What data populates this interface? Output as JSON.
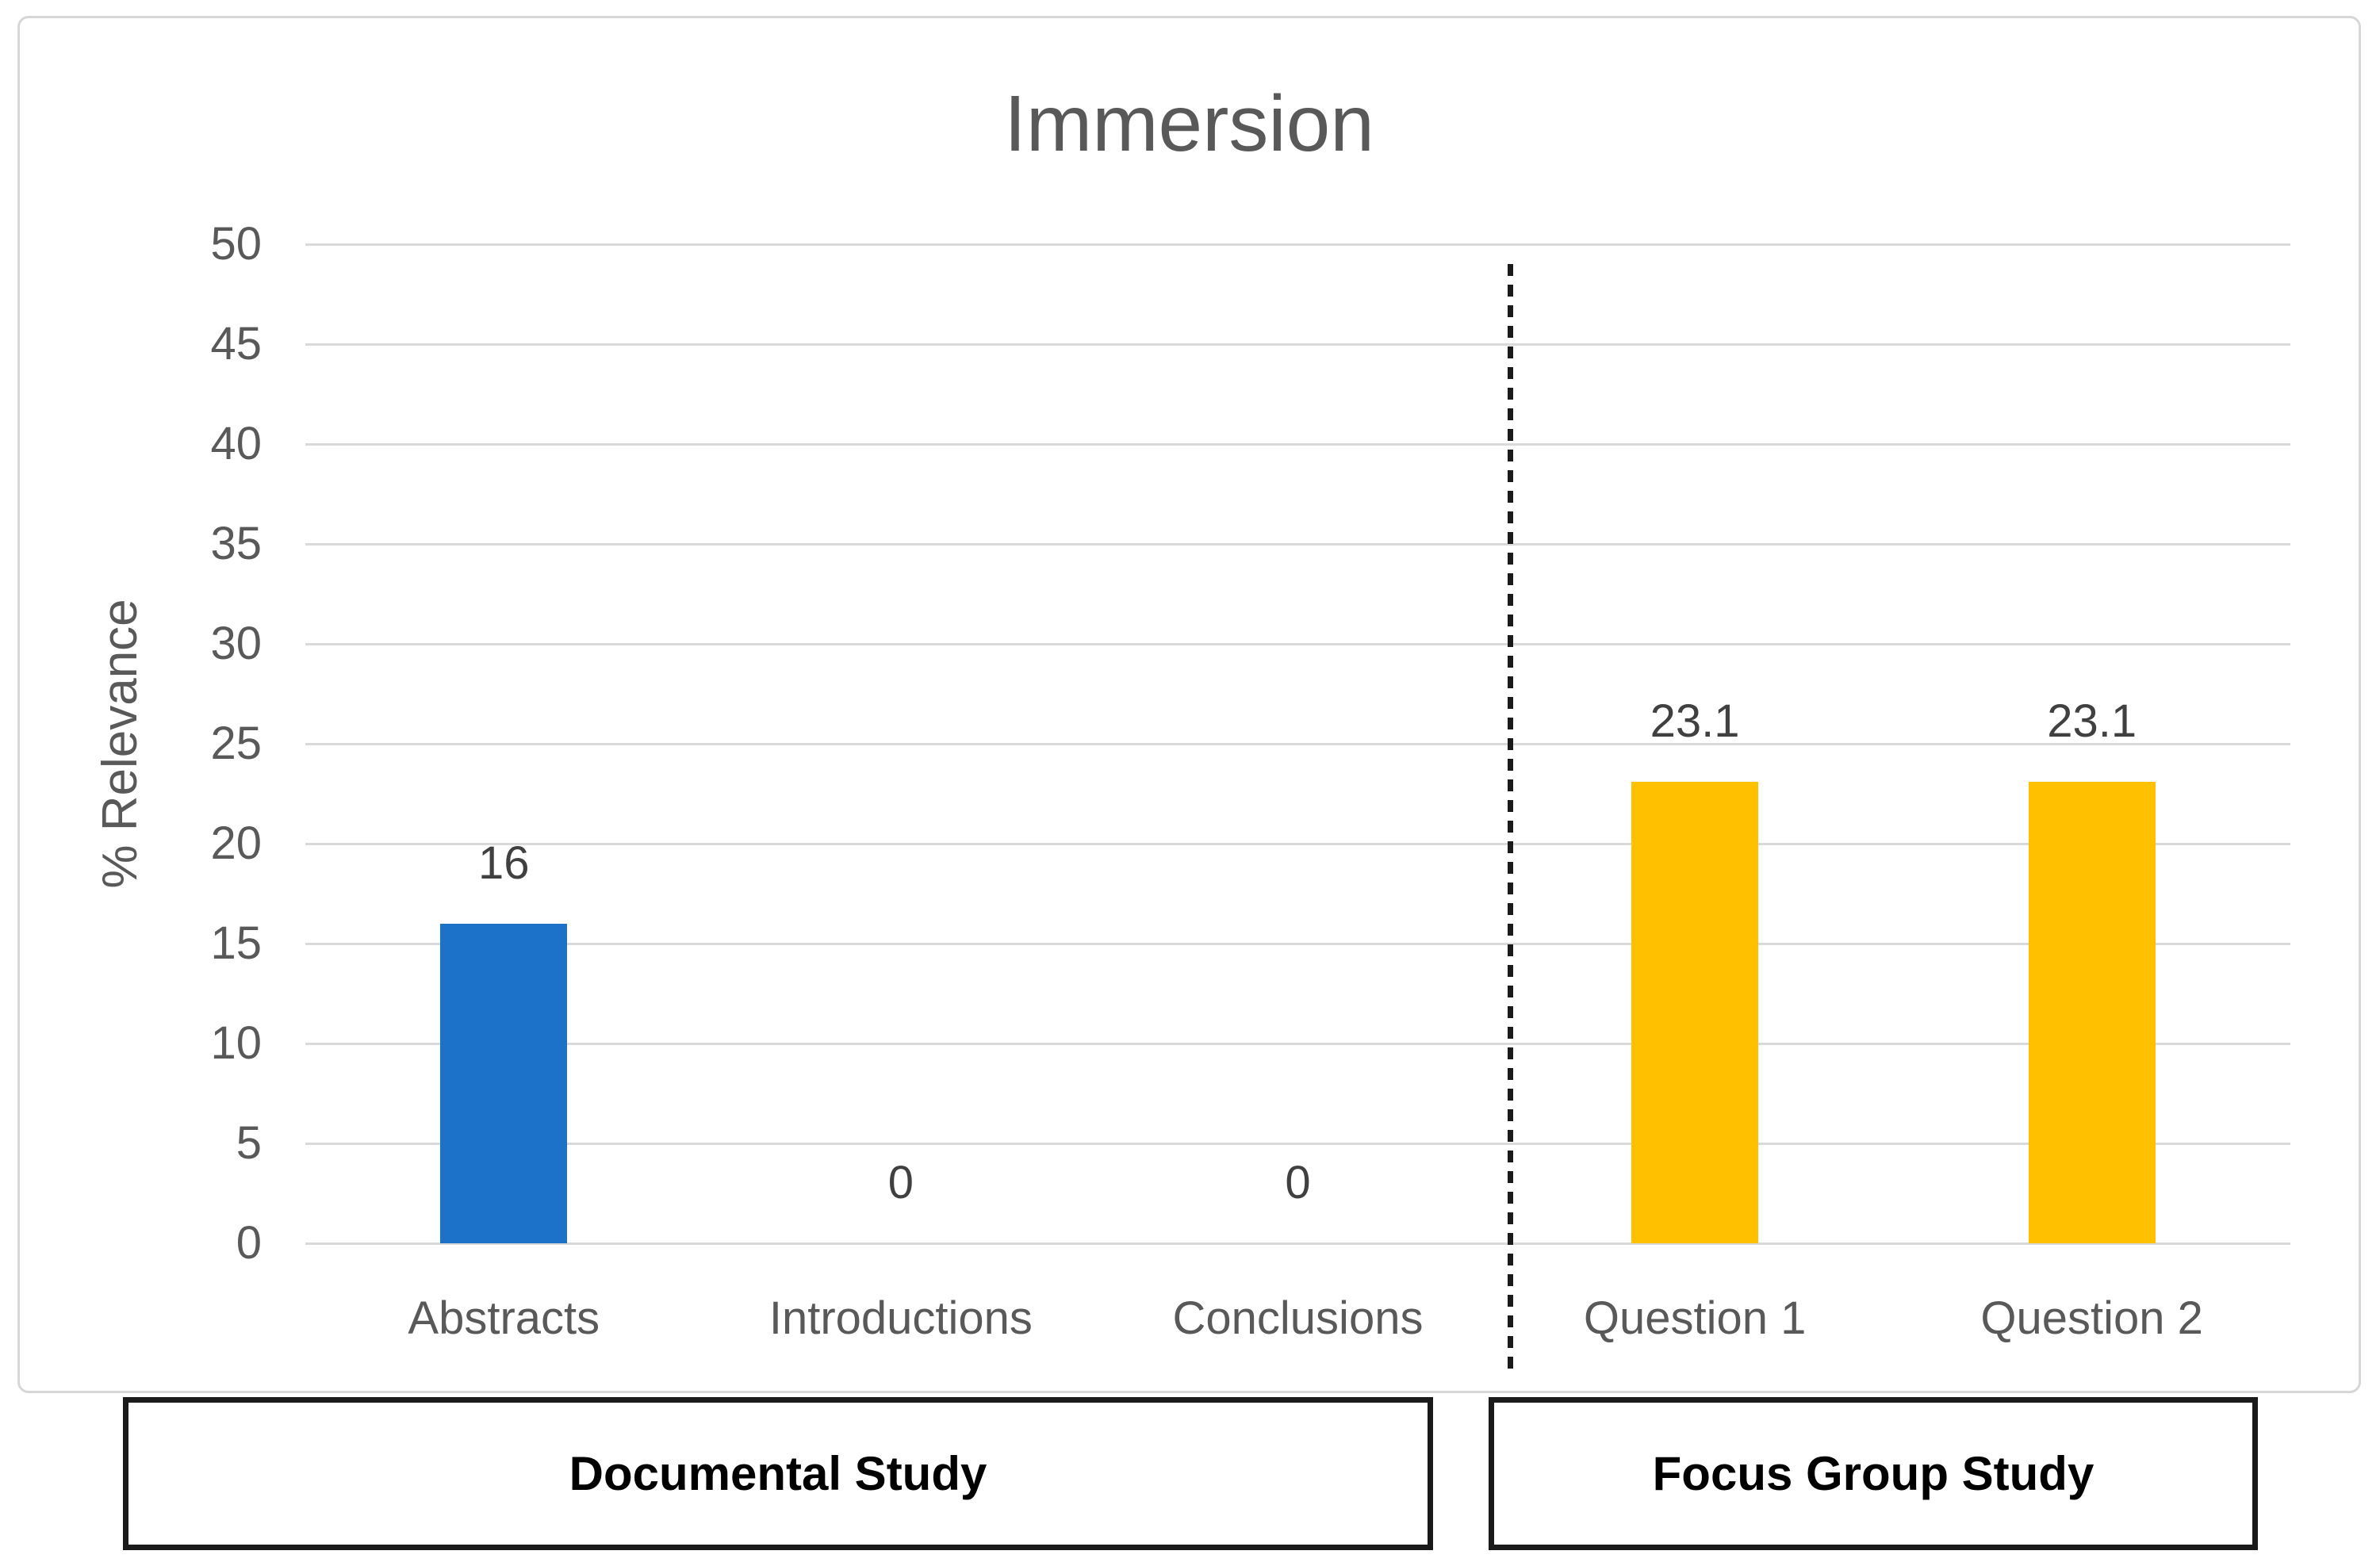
{
  "chart": {
    "title": "Immersion",
    "y_axis_title": "% Relevance",
    "group_boxes": [
      {
        "label": "Documental Study"
      },
      {
        "label": "Focus Group Study"
      }
    ],
    "colors": {
      "bar_blue": "#1C72C8",
      "bar_yellow": "#FFC000",
      "gridline": "#D9D9D9",
      "axis_text": "#595959",
      "data_label_text": "#404040",
      "separator_line": "#1A1A1A",
      "frame_border": "#D7D7D7",
      "box_border": "#1A1A1A"
    }
  },
  "chart_data": {
    "type": "bar",
    "title": "Immersion",
    "xlabel": "",
    "ylabel": "% Relevance",
    "ylim": [
      0,
      50
    ],
    "ytick_step": 5,
    "ytick_labels": [
      "50",
      "45",
      "40",
      "35",
      "30",
      "25",
      "20",
      "15",
      "10",
      "5",
      "0"
    ],
    "categories": [
      "Abstracts",
      "Introductions",
      "Conclusions",
      "Question 1",
      "Question 2"
    ],
    "values": [
      16,
      0,
      0,
      23.1,
      23.1
    ],
    "data_labels": [
      "16",
      "0",
      "0",
      "23.1",
      "23.1"
    ],
    "bar_colors": [
      "#1C72C8",
      "#1C72C8",
      "#1C72C8",
      "#FFC000",
      "#FFC000"
    ],
    "groups": [
      {
        "label": "Documental Study",
        "categories": [
          "Abstracts",
          "Introductions",
          "Conclusions"
        ]
      },
      {
        "label": "Focus Group Study",
        "categories": [
          "Question 1",
          "Question 2"
        ]
      }
    ],
    "separator": {
      "style": "dashed",
      "between": [
        "Conclusions",
        "Question 1"
      ]
    },
    "grid": true,
    "legend_position": "none"
  }
}
